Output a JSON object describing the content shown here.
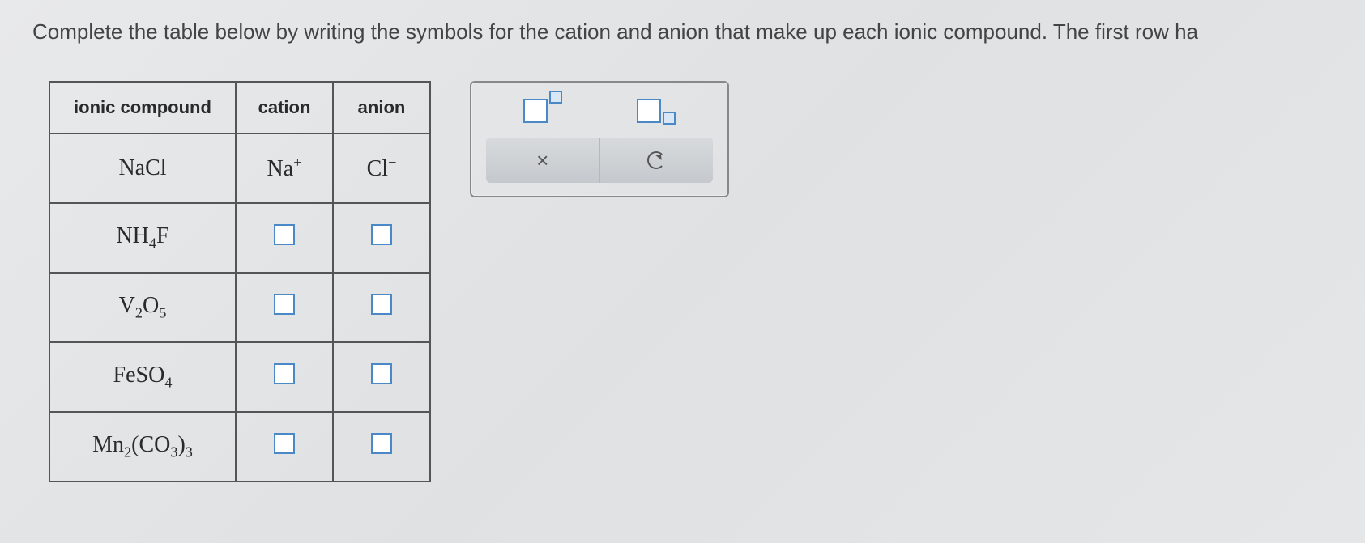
{
  "instruction": "Complete the table below by writing the symbols for the cation and anion that make up each ionic compound. The first row ha",
  "table": {
    "headers": {
      "compound": "ionic compound",
      "cation": "cation",
      "anion": "anion"
    },
    "rows": [
      {
        "compound_html": "NaCl",
        "cation_html": "Na<sup>+</sup>",
        "anion_html": "Cl<sup>−</sup>",
        "filled": true
      },
      {
        "compound_html": "NH<sub>4</sub>F",
        "filled": false
      },
      {
        "compound_html": "V<sub>2</sub>O<sub>5</sub>",
        "filled": false
      },
      {
        "compound_html": "FeSO<sub>4</sub>",
        "filled": false
      },
      {
        "compound_html": "Mn<sub>2</sub>(CO<sub>3</sub>)<sub>3</sub>",
        "filled": false
      }
    ]
  },
  "toolbox": {
    "superscript_tool": "superscript-format",
    "subscript_tool": "subscript-format",
    "clear_label": "×",
    "undo_label": "undo"
  },
  "colors": {
    "border": "#555555",
    "input_border": "#4a88c7",
    "input_accent_bg": "#d9e6f5",
    "panel_button_bg": "#c9cdd1",
    "text": "#3a3a3a"
  }
}
